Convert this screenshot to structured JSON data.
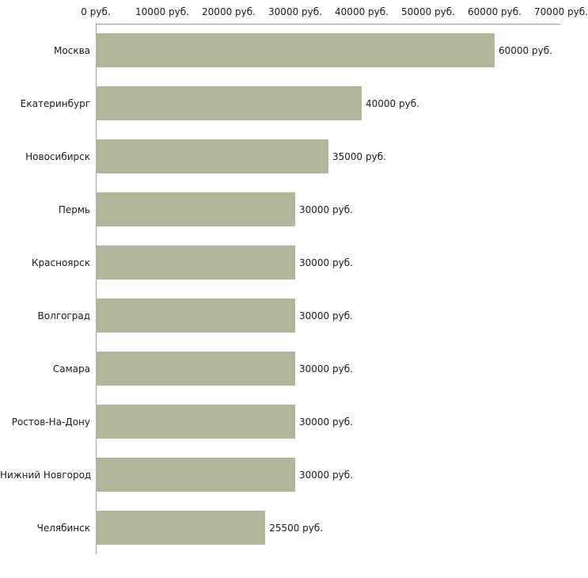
{
  "chart_data": {
    "type": "bar",
    "orientation": "horizontal",
    "title": "",
    "xlabel": "",
    "ylabel": "",
    "unit": "руб.",
    "categories": [
      "Москва",
      "Екатеринбург",
      "Новосибирск",
      "Пермь",
      "Красноярск",
      "Волгоград",
      "Самара",
      "Ростов-На-Дону",
      "Нижний Новгород",
      "Челябинск"
    ],
    "values": [
      60000,
      40000,
      35000,
      30000,
      30000,
      30000,
      30000,
      30000,
      30000,
      25500
    ],
    "value_labels": [
      "60000 руб.",
      "40000 руб.",
      "35000 руб.",
      "30000 руб.",
      "30000 руб.",
      "30000 руб.",
      "30000 руб.",
      "30000 руб.",
      "30000 руб.",
      "25500 руб."
    ],
    "x_ticks": [
      0,
      10000,
      20000,
      30000,
      40000,
      50000,
      60000,
      70000
    ],
    "x_tick_labels": [
      "0 руб.",
      "10000 руб.",
      "20000 руб.",
      "30000 руб.",
      "40000 руб.",
      "50000 руб.",
      "60000 руб.",
      "70000 руб."
    ],
    "xlim": [
      0,
      70000
    ],
    "grid": false,
    "legend": false,
    "bar_color": "#afb69c",
    "axis_color": "#9e9e9e",
    "text_color": "#1a1a1a",
    "background_color": "#ffffff"
  }
}
